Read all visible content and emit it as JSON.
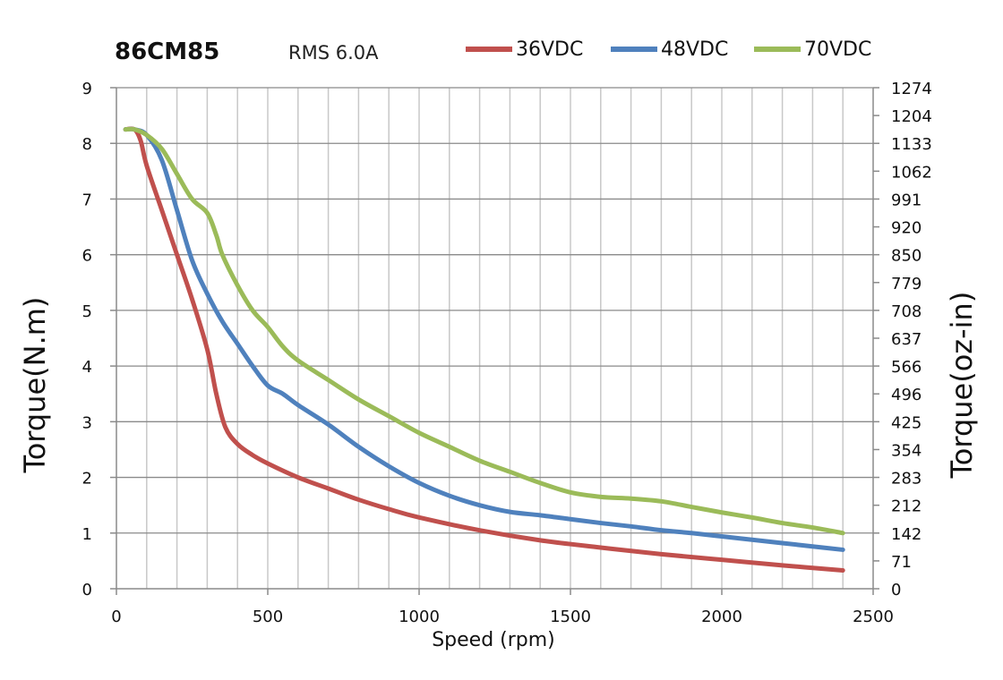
{
  "chart_data": {
    "type": "line",
    "title": "86CM85",
    "subtitle": "RMS 6.0A",
    "xlabel": "Speed (rpm)",
    "ylabel": "Torque(N.m)",
    "y2label": "Torque(oz-in)",
    "xlim": [
      0,
      2500
    ],
    "ylim": [
      0,
      9
    ],
    "x_ticks": [
      "0",
      "500",
      "1000",
      "1500",
      "2000",
      "2500"
    ],
    "y_ticks": [
      "0",
      "1",
      "2",
      "3",
      "4",
      "5",
      "6",
      "7",
      "8",
      "9"
    ],
    "y2_ticks": [
      "0",
      "71",
      "142",
      "212",
      "283",
      "354",
      "425",
      "496",
      "566",
      "637",
      "708",
      "779",
      "850",
      "920",
      "991",
      "1062",
      "1133",
      "1204",
      "1274"
    ],
    "grid": true,
    "legend": "top-right",
    "series": [
      {
        "name": "36VDC",
        "color": "#c0504d",
        "points": [
          [
            30,
            8.25
          ],
          [
            60,
            8.25
          ],
          [
            80,
            8.05
          ],
          [
            100,
            7.6
          ],
          [
            150,
            6.8
          ],
          [
            200,
            6.0
          ],
          [
            250,
            5.2
          ],
          [
            300,
            4.3
          ],
          [
            330,
            3.5
          ],
          [
            360,
            2.9
          ],
          [
            400,
            2.6
          ],
          [
            450,
            2.4
          ],
          [
            500,
            2.25
          ],
          [
            600,
            2.0
          ],
          [
            700,
            1.8
          ],
          [
            800,
            1.6
          ],
          [
            900,
            1.43
          ],
          [
            1000,
            1.28
          ],
          [
            1200,
            1.05
          ],
          [
            1400,
            0.87
          ],
          [
            1600,
            0.74
          ],
          [
            1800,
            0.62
          ],
          [
            2000,
            0.52
          ],
          [
            2200,
            0.42
          ],
          [
            2400,
            0.33
          ]
        ]
      },
      {
        "name": "48VDC",
        "color": "#4f81bd",
        "points": [
          [
            30,
            8.25
          ],
          [
            60,
            8.25
          ],
          [
            100,
            8.15
          ],
          [
            150,
            7.7
          ],
          [
            200,
            6.8
          ],
          [
            250,
            5.9
          ],
          [
            300,
            5.3
          ],
          [
            350,
            4.8
          ],
          [
            400,
            4.4
          ],
          [
            450,
            4.0
          ],
          [
            500,
            3.65
          ],
          [
            550,
            3.5
          ],
          [
            600,
            3.3
          ],
          [
            700,
            2.95
          ],
          [
            800,
            2.55
          ],
          [
            900,
            2.2
          ],
          [
            1000,
            1.9
          ],
          [
            1100,
            1.67
          ],
          [
            1200,
            1.5
          ],
          [
            1300,
            1.38
          ],
          [
            1400,
            1.32
          ],
          [
            1500,
            1.25
          ],
          [
            1600,
            1.18
          ],
          [
            1700,
            1.12
          ],
          [
            1800,
            1.05
          ],
          [
            1900,
            1.0
          ],
          [
            2000,
            0.94
          ],
          [
            2100,
            0.88
          ],
          [
            2200,
            0.82
          ],
          [
            2300,
            0.76
          ],
          [
            2400,
            0.7
          ]
        ]
      },
      {
        "name": "70VDC",
        "color": "#9bbb59",
        "points": [
          [
            30,
            8.25
          ],
          [
            60,
            8.25
          ],
          [
            100,
            8.15
          ],
          [
            150,
            7.9
          ],
          [
            200,
            7.45
          ],
          [
            250,
            7.0
          ],
          [
            300,
            6.75
          ],
          [
            330,
            6.35
          ],
          [
            350,
            6.0
          ],
          [
            400,
            5.45
          ],
          [
            450,
            5.0
          ],
          [
            500,
            4.7
          ],
          [
            550,
            4.35
          ],
          [
            600,
            4.1
          ],
          [
            700,
            3.75
          ],
          [
            800,
            3.4
          ],
          [
            900,
            3.1
          ],
          [
            1000,
            2.8
          ],
          [
            1100,
            2.55
          ],
          [
            1200,
            2.3
          ],
          [
            1300,
            2.1
          ],
          [
            1400,
            1.9
          ],
          [
            1500,
            1.73
          ],
          [
            1600,
            1.65
          ],
          [
            1700,
            1.62
          ],
          [
            1800,
            1.57
          ],
          [
            1900,
            1.47
          ],
          [
            2000,
            1.37
          ],
          [
            2100,
            1.28
          ],
          [
            2200,
            1.18
          ],
          [
            2300,
            1.1
          ],
          [
            2400,
            1.0
          ]
        ]
      }
    ]
  }
}
